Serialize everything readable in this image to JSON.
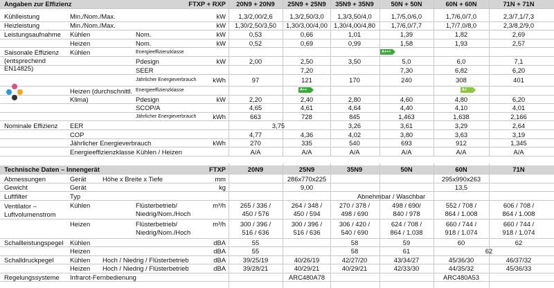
{
  "efficiency": {
    "title": "Angaben zur Effizienz",
    "model_header": "FTXP + RXP",
    "columns": [
      "20N9 + 20N9",
      "25N9 + 25N9",
      "35N9 + 35N9",
      "50N + 50N",
      "60N + 60N",
      "71N + 71N"
    ],
    "kuehlleistung": {
      "label": "Kühlleistung",
      "sub": "Min./Nom./Max.",
      "unit": "kW",
      "values": [
        "1,3/2,00/2,6",
        "1,3/2,50/3,0",
        "1,3/3,50/4,0",
        "1,7/5,0/6,0",
        "1,7/6,0/7,0",
        "2,3/7,1/7,3"
      ]
    },
    "heizleistung": {
      "label": "Heizleistung",
      "sub": "Min./Nom./Max.",
      "unit": "kW",
      "values": [
        "1,30/2,50/3,50",
        "1,30/3,00/4,00",
        "1,30/4,00/4,80",
        "1,7/6,0/7,7",
        "1,7/7,0/8,0",
        "2,3/8,2/9,0"
      ]
    },
    "leistungsaufnahme": {
      "label": "Leistungsaufnahme",
      "kuehlen": "Kühlen",
      "heizen": "Heizen",
      "sub": "Nom.",
      "unit": "kW",
      "kuehlen_values": [
        "0,53",
        "0,66",
        "1,01",
        "1,39",
        "1,82",
        "2,69"
      ],
      "heizen_values": [
        "0,52",
        "0,69",
        "0,99",
        "1,58",
        "1,93",
        "2,57"
      ]
    },
    "saisonal": {
      "label": "Saisonale Effizienz (entsprechend EN14825)",
      "kuehlen": "Kühlen",
      "energieklasse": "Energieeffizienzklasse",
      "pdesign": "Pdesign",
      "pdesign_unit": "kW",
      "seer": "SEER",
      "jahresverbrauch": "Jährlicher Energieverbrauch",
      "jahresverbrauch_unit": "kWh",
      "k_badge": "A+++",
      "k_pdesign": [
        "2,00",
        "2,50",
        "3,50",
        "5,0",
        "6,0",
        "7,1"
      ],
      "k_seer_merged_1": "7,20",
      "k_seer": [
        "7,30",
        "6,82",
        "6,20"
      ],
      "k_verbrauch": [
        "97",
        "121",
        "170",
        "240",
        "308",
        "401"
      ],
      "heizen": "Heizen (durchschnittl. Klima)",
      "scop": "SCOP/A",
      "h_badge_1": "A++",
      "h_badge_2": "A+",
      "h_pdesign": [
        "2,20",
        "2,40",
        "2,80",
        "4,60",
        "4,80",
        "6,20"
      ],
      "h_scop": [
        "4,65",
        "4,61",
        "4,64",
        "4,40",
        "4,10",
        "4,01"
      ],
      "h_verbrauch": [
        "663",
        "728",
        "845",
        "1,463",
        "1,638",
        "2,166"
      ]
    },
    "nominal": {
      "label": "Nominale Effizienz",
      "eer": "EER",
      "eer_merged": "3,75",
      "eer_values": [
        "3,26",
        "3,61",
        "3,29",
        "2,64"
      ],
      "cop": "COP",
      "cop_values": [
        "4,77",
        "4,36",
        "4,02",
        "3,80",
        "3,63",
        "3,19"
      ],
      "verbrauch": "Jährlicher Energieverbrauch",
      "verbrauch_unit": "kWh",
      "verbrauch_values": [
        "270",
        "335",
        "540",
        "693",
        "912",
        "1,345"
      ],
      "klasse": "Energieeffizienzklasse Kühlen / Heizen",
      "klasse_values": [
        "A/A",
        "A/A",
        "A/A",
        "A/A",
        "A/A",
        "A/A"
      ]
    }
  },
  "technical": {
    "title": "Technische Daten – Innengerät",
    "model_header": "FTXP",
    "columns": [
      "20N9",
      "25N9",
      "35N9",
      "50N",
      "60N",
      "71N"
    ],
    "abmessungen": {
      "label": "Abmessungen",
      "sub": "Gerät",
      "detail": "Höhe x Breite x Tiefe",
      "unit": "mm",
      "v1": "286x770x225",
      "v2": "295x990x263"
    },
    "gewicht": {
      "label": "Gewicht",
      "sub": "Gerät",
      "unit": "kg",
      "v1": "9,00",
      "v2": "13,5"
    },
    "luftfilter": {
      "label": "Luftfilter",
      "sub": "Typ",
      "value": "Abnehmbar / Waschbar"
    },
    "ventilator": {
      "label": "Ventilator – Luftvolumenstrom",
      "kuehlen": "Kühlen",
      "heizen": "Heizen",
      "detail_1": "Flüsterbetrieb/",
      "detail_2": "Niedrig/Nom./Hoch",
      "unit": "m³/h",
      "k_line1": [
        "265 / 336 /",
        "264 / 348 /",
        "270 / 378 /",
        "498 / 690/",
        "552 / 708 /",
        "606 / 708 /"
      ],
      "k_line2": [
        "450 / 576",
        "450 / 594",
        "498 / 690",
        "840 / 978",
        "864 / 1.008",
        "864 / 1.008"
      ],
      "h_line1": [
        "300 / 396 /",
        "300 / 396 /",
        "306 / 420 /",
        "624 / 708 /",
        "660 / 744 /",
        "660 / 744 /"
      ],
      "h_line2": [
        "516 / 636",
        "516 / 636",
        "540 / 690",
        "864 / 1.038",
        "918 / 1.074",
        "918 / 1.074"
      ]
    },
    "schallleistung": {
      "label": "Schallleistungspegel",
      "kuehlen": "Kühlen",
      "heizen": "Heizen",
      "unit": "dBA",
      "k_v1": "55",
      "k_v2": "58",
      "k_values": [
        "59",
        "60",
        "62"
      ],
      "h_v1": "55",
      "h_v2": "58",
      "h_v3": "61",
      "h_v4": "62"
    },
    "schalldruck": {
      "label": "Schalldruckpegel",
      "kuehlen": "Kühlen",
      "heizen": "Heizen",
      "detail": "Hoch / Niedrig / Flüsterbetrieb",
      "unit": "dBA",
      "k_values": [
        "39/25/19",
        "40/26/19",
        "42/27/20",
        "43/34/27",
        "45/36/30",
        "46/37/32"
      ],
      "h_values": [
        "39/28/21",
        "40/29/21",
        "40/29/21",
        "42/33/30",
        "44/35/32",
        "45/36/33"
      ]
    },
    "regelung": {
      "label": "Regelungssysteme",
      "sub": "Infrarot-Fernbedienung",
      "v1": "ARC480A78",
      "v2": "ARC480A53"
    }
  },
  "colors": {
    "header_bg": "#d4d4d4",
    "grid": "#c8c8c8",
    "badge_dark": "#3aa935",
    "badge_light": "#8cc63f"
  },
  "icons": [
    "climate-dots-icon"
  ]
}
